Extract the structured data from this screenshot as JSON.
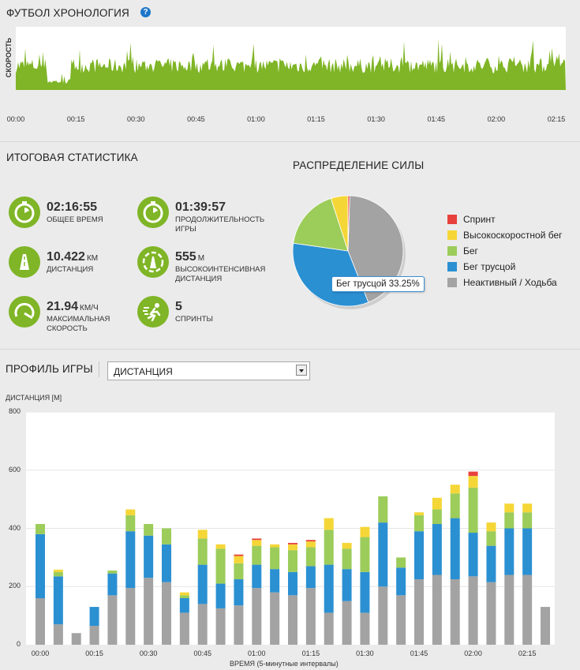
{
  "timeline": {
    "title": "ФУТБОЛ ХРОНОЛОГИЯ",
    "help_icon": "question-icon",
    "ylabel": "СКОРОСТЬ",
    "ticks": [
      "00:00",
      "00:15",
      "00:30",
      "00:45",
      "01:00",
      "01:15",
      "01:30",
      "01:45",
      "02:00",
      "02:15"
    ],
    "color": "#7fb526"
  },
  "stats": {
    "title": "ИТОГОВАЯ СТАТИСТИКА",
    "items": [
      {
        "value": "02:16:55",
        "unit": "",
        "label": [
          "ОБЩЕЕ ВРЕМЯ"
        ],
        "icon": "stopwatch-icon"
      },
      {
        "value": "01:39:57",
        "unit": "",
        "label": [
          "ПРОДОЛЖИТЕЛЬНОСТЬ",
          "ИГРЫ"
        ],
        "icon": "stopwatch-icon"
      },
      {
        "value": "10.422",
        "unit": "КМ",
        "label": [
          "ДИСТАНЦИЯ"
        ],
        "icon": "road-icon"
      },
      {
        "value": "555",
        "unit": "М",
        "label": [
          "ВЫСОКОИНТЕНСИВНАЯ",
          "ДИСТАНЦИЯ"
        ],
        "icon": "intensity-road-icon"
      },
      {
        "value": "21.94",
        "unit": "КМ/Ч",
        "label": [
          "МАКСИМАЛЬНАЯ",
          "СКОРОСТЬ"
        ],
        "icon": "speedometer-icon"
      },
      {
        "value": "5",
        "unit": "",
        "label": [
          "СПРИНТЫ"
        ],
        "icon": "sprinter-icon"
      }
    ]
  },
  "distribution": {
    "title": "РАСПРЕДЕЛЕНИЕ СИЛЫ",
    "tooltip": "Бег трусцой 33.25%",
    "legend": [
      {
        "label": "Спринт",
        "color": "#e8413c"
      },
      {
        "label": "Высокоскоростной бег",
        "color": "#f5d637"
      },
      {
        "label": "Бег",
        "color": "#9ccc5a"
      },
      {
        "label": "Бег трусцой",
        "color": "#2b90d2"
      },
      {
        "label": "Неактивный / Ходьба",
        "color": "#a3a3a3"
      }
    ]
  },
  "profile": {
    "title": "ПРОФИЛЬ ИГРЫ",
    "select_value": "ДИСТАНЦИЯ"
  },
  "chart_data": [
    {
      "type": "pie",
      "title": "РАСПРЕДЕЛЕНИЕ СИЛЫ",
      "slices": [
        {
          "name": "Спринт",
          "value": 0.5
        },
        {
          "name": "Высокоскоростной бег",
          "value": 5.0
        },
        {
          "name": "Бег",
          "value": 17.75
        },
        {
          "name": "Бег трусцой",
          "value": 33.25
        },
        {
          "name": "Неактивный / Ходьба",
          "value": 43.5
        }
      ]
    },
    {
      "type": "bar",
      "stacked": true,
      "title": "",
      "ylabel": "ДИСТАНЦИЯ [М]",
      "xlabel": "ВРЕМЯ (5-минутные интервалы)",
      "ylim": [
        0,
        800
      ],
      "yticks": [
        0,
        200,
        400,
        600,
        800
      ],
      "xticks": [
        "00:00",
        "00:15",
        "00:30",
        "00:45",
        "01:00",
        "01:15",
        "01:30",
        "01:45",
        "02:00",
        "02:15"
      ],
      "series": [
        {
          "name": "Неактивный / Ходьба",
          "values": [
            160,
            70,
            40,
            65,
            170,
            195,
            230,
            215,
            110,
            140,
            125,
            135,
            195,
            180,
            170,
            195,
            110,
            150,
            110,
            200,
            170,
            225,
            240,
            225,
            235,
            215,
            240,
            240,
            130
          ]
        },
        {
          "name": "Бег трусцой",
          "values": [
            220,
            165,
            0,
            65,
            75,
            195,
            145,
            130,
            50,
            135,
            85,
            90,
            80,
            80,
            80,
            75,
            165,
            110,
            140,
            220,
            95,
            165,
            175,
            210,
            150,
            125,
            160,
            160,
            0
          ]
        },
        {
          "name": "Бег",
          "values": [
            35,
            15,
            0,
            0,
            10,
            55,
            40,
            55,
            10,
            90,
            120,
            55,
            65,
            75,
            75,
            65,
            120,
            70,
            120,
            90,
            35,
            55,
            50,
            85,
            155,
            50,
            55,
            55,
            0
          ]
        },
        {
          "name": "Высокоскоростной бег",
          "values": [
            0,
            8,
            0,
            0,
            0,
            20,
            0,
            0,
            10,
            30,
            15,
            25,
            20,
            10,
            20,
            20,
            40,
            20,
            35,
            0,
            0,
            10,
            40,
            30,
            40,
            30,
            30,
            30,
            0
          ]
        },
        {
          "name": "Спринт",
          "values": [
            0,
            0,
            0,
            0,
            0,
            0,
            0,
            0,
            0,
            0,
            0,
            5,
            5,
            0,
            5,
            5,
            0,
            0,
            0,
            0,
            0,
            0,
            0,
            0,
            15,
            0,
            0,
            0,
            0
          ]
        }
      ]
    }
  ]
}
